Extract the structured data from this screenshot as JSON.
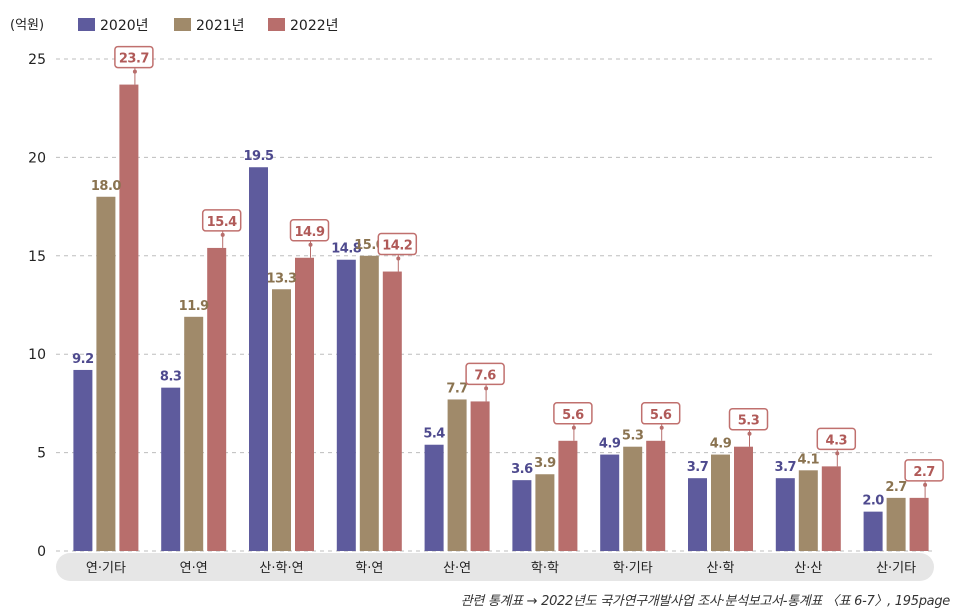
{
  "chart_data": {
    "type": "bar",
    "unit": "(억원)",
    "categories": [
      "연·기타",
      "연·연",
      "산·학·연",
      "학·연",
      "산·연",
      "학·학",
      "학·기타",
      "산·학",
      "산·산",
      "산·기타"
    ],
    "series": [
      {
        "name": "2020년",
        "color": "#5e5b9d",
        "values": [
          9.2,
          8.3,
          19.5,
          14.8,
          5.4,
          3.6,
          4.9,
          3.7,
          3.7,
          2.0
        ]
      },
      {
        "name": "2021년",
        "color": "#a08a6a",
        "values": [
          18.0,
          11.9,
          13.3,
          15.0,
          7.7,
          3.9,
          5.3,
          4.9,
          4.1,
          2.7
        ]
      },
      {
        "name": "2022년",
        "color": "#b86e6c",
        "values": [
          23.7,
          15.4,
          14.9,
          14.2,
          7.6,
          5.6,
          5.6,
          5.3,
          4.3,
          2.7
        ]
      }
    ],
    "labels": [
      [
        "9.2",
        "8.3",
        "19.5",
        "14.8",
        "5.4",
        "3.6",
        "4.9",
        "3.7",
        "3.7",
        "2.0"
      ],
      [
        "18.0",
        "11.9",
        "13.3",
        "15.0",
        "7.7",
        "3.9",
        "5.3",
        "4.9",
        "4.1",
        "2.7"
      ],
      [
        "23.7",
        "15.4",
        "14.9",
        "14.2",
        "7.6",
        "5.6",
        "5.6",
        "5.3",
        "4.3",
        "2.7"
      ]
    ],
    "ylim": [
      0,
      25
    ],
    "yticks": [
      "0",
      "5",
      "10",
      "15",
      "20",
      "25"
    ],
    "grid": true,
    "legend_position": "top-left"
  },
  "note": "관련 통계표 → 2022년도 국가연구개발사업 조사·분석보고서-통계표 〈표 6-7〉, 195page"
}
